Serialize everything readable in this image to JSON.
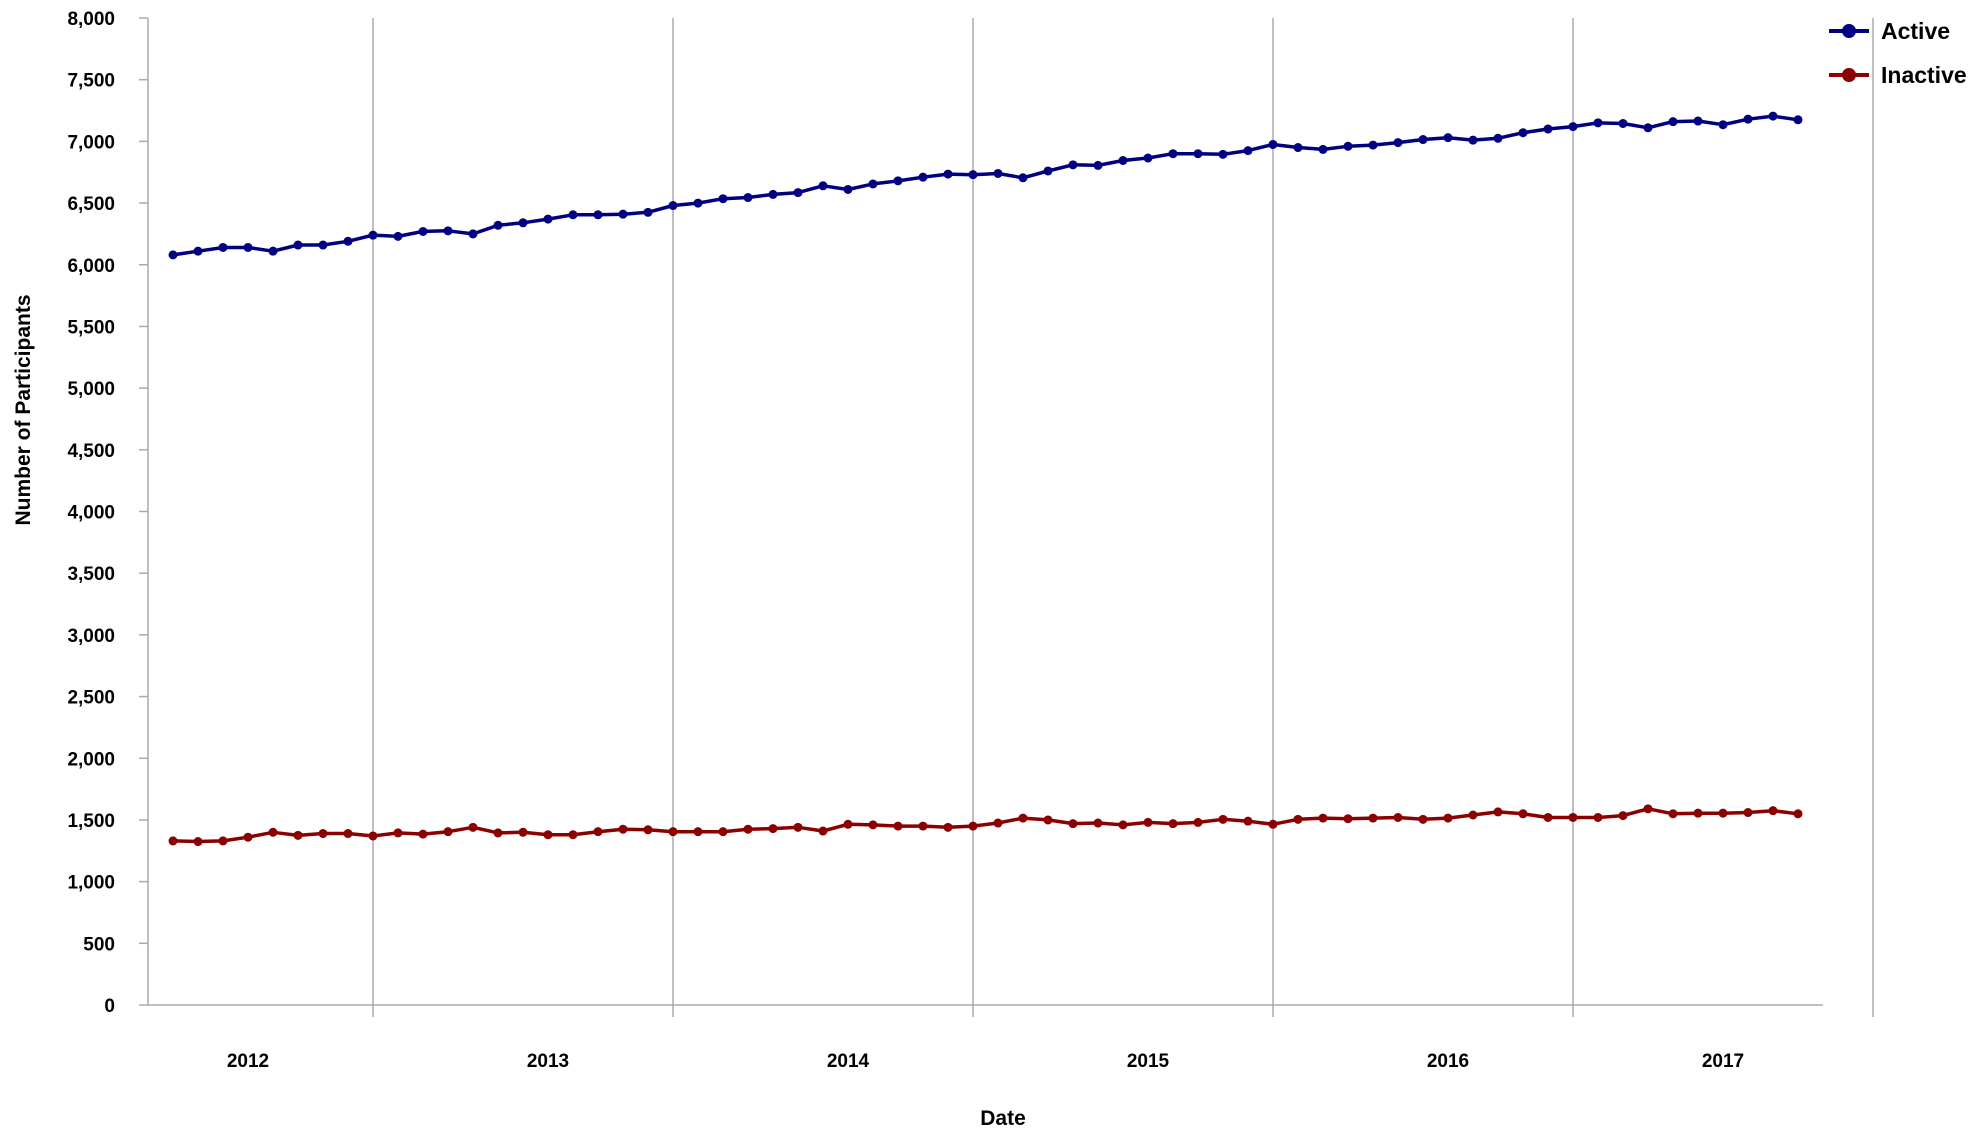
{
  "chart_data": {
    "type": "line",
    "title": "",
    "xlabel": "Date",
    "ylabel": "Number of Participants",
    "ylim": [
      0,
      8000
    ],
    "yticks": [
      0,
      500,
      1000,
      1500,
      2000,
      2500,
      3000,
      3500,
      4000,
      4500,
      5000,
      5500,
      6000,
      6500,
      7000,
      7500,
      8000
    ],
    "ytick_labels": [
      "0",
      "500",
      "1,000",
      "1,500",
      "2,000",
      "2,500",
      "3,000",
      "3,500",
      "4,000",
      "4,500",
      "5,000",
      "5,500",
      "6,000",
      "6,500",
      "7,000",
      "7,500",
      "8,000"
    ],
    "x_range": [
      "2011-09",
      "2017-04"
    ],
    "x_gridlines_at": [
      "2012-06",
      "2013-06",
      "2014-06",
      "2015-06",
      "2016-06",
      "2017-06"
    ],
    "x_tick_labels": [
      {
        "label": "2012",
        "at": "2012-01"
      },
      {
        "label": "2013",
        "at": "2013-01"
      },
      {
        "label": "2014",
        "at": "2014-01"
      },
      {
        "label": "2015",
        "at": "2015-01"
      },
      {
        "label": "2016",
        "at": "2016-01"
      },
      {
        "label": "2017",
        "at": "2016-12"
      }
    ],
    "grid": "vertical",
    "legend": "top-right",
    "x": [
      "2011-10",
      "2011-11",
      "2011-12",
      "2012-01",
      "2012-02",
      "2012-03",
      "2012-04",
      "2012-05",
      "2012-06",
      "2012-07",
      "2012-08",
      "2012-09",
      "2012-10",
      "2012-11",
      "2012-12",
      "2013-01",
      "2013-02",
      "2013-03",
      "2013-04",
      "2013-05",
      "2013-06",
      "2013-07",
      "2013-08",
      "2013-09",
      "2013-10",
      "2013-11",
      "2013-12",
      "2014-01",
      "2014-02",
      "2014-03",
      "2014-04",
      "2014-05",
      "2014-06",
      "2014-07",
      "2014-08",
      "2014-09",
      "2014-10",
      "2014-11",
      "2014-12",
      "2015-01",
      "2015-02",
      "2015-03",
      "2015-04",
      "2015-05",
      "2015-06",
      "2015-07",
      "2015-08",
      "2015-09",
      "2015-10",
      "2015-11",
      "2015-12",
      "2016-01",
      "2016-02",
      "2016-03",
      "2016-04",
      "2016-05",
      "2016-06",
      "2016-07",
      "2016-08",
      "2016-09",
      "2016-10",
      "2016-11",
      "2016-12",
      "2017-01",
      "2017-02",
      "2017-03"
    ],
    "series": [
      {
        "name": "Active",
        "color": "#000080",
        "values": [
          6080,
          6110,
          6140,
          6140,
          6110,
          6160,
          6160,
          6190,
          6240,
          6230,
          6270,
          6275,
          6250,
          6320,
          6340,
          6370,
          6405,
          6405,
          6410,
          6425,
          6480,
          6500,
          6535,
          6545,
          6570,
          6585,
          6640,
          6610,
          6655,
          6680,
          6710,
          6735,
          6730,
          6740,
          6705,
          6760,
          6810,
          6805,
          6845,
          6865,
          6900,
          6900,
          6895,
          6925,
          6975,
          6950,
          6935,
          6960,
          6970,
          6990,
          7015,
          7030,
          7010,
          7025,
          7070,
          7100,
          7120,
          7150,
          7145,
          7110,
          7160,
          7165,
          7135,
          7180,
          7205,
          7175
        ]
      },
      {
        "name": "Inactive",
        "color": "#8b0000",
        "values": [
          1330,
          1325,
          1330,
          1360,
          1400,
          1375,
          1390,
          1390,
          1370,
          1395,
          1385,
          1405,
          1440,
          1395,
          1400,
          1380,
          1380,
          1405,
          1425,
          1420,
          1405,
          1405,
          1405,
          1425,
          1430,
          1440,
          1410,
          1465,
          1460,
          1450,
          1450,
          1440,
          1450,
          1475,
          1515,
          1500,
          1470,
          1475,
          1460,
          1480,
          1470,
          1480,
          1505,
          1490,
          1465,
          1505,
          1515,
          1510,
          1515,
          1520,
          1505,
          1515,
          1540,
          1565,
          1550,
          1520,
          1520,
          1520,
          1535,
          1590,
          1550,
          1555,
          1555,
          1560,
          1575,
          1550
        ]
      }
    ]
  }
}
